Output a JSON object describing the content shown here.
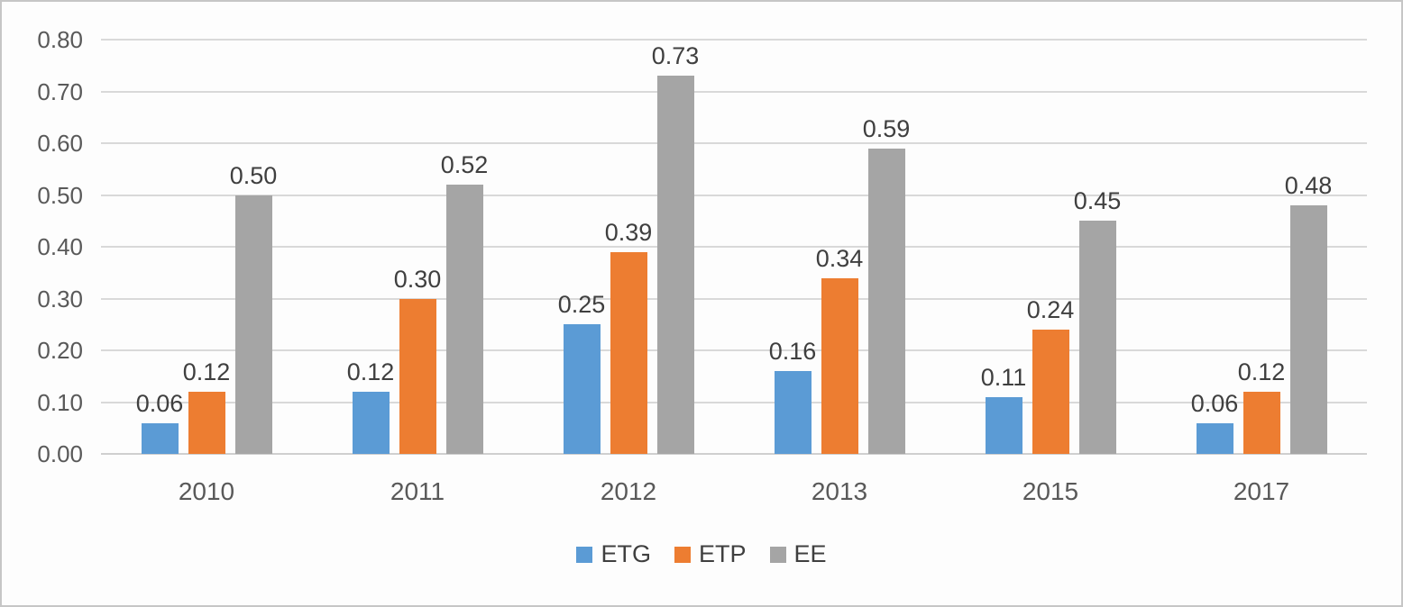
{
  "chart_data": {
    "type": "bar",
    "title": "",
    "xlabel": "",
    "ylabel": "",
    "categories": [
      "2010",
      "2011",
      "2012",
      "2013",
      "2015",
      "2017"
    ],
    "series": [
      {
        "name": "ETG",
        "color": "#5B9BD5",
        "values": [
          0.06,
          0.12,
          0.25,
          0.16,
          0.11,
          0.06
        ]
      },
      {
        "name": "ETP",
        "color": "#ED7D31",
        "values": [
          0.12,
          0.3,
          0.39,
          0.34,
          0.24,
          0.12
        ]
      },
      {
        "name": "EE",
        "color": "#A5A5A5",
        "values": [
          0.5,
          0.52,
          0.73,
          0.59,
          0.45,
          0.48
        ]
      }
    ],
    "ylim": [
      0,
      0.8
    ],
    "ytick_step": 0.1,
    "ytick_labels": [
      "0.00",
      "0.10",
      "0.20",
      "0.30",
      "0.40",
      "0.50",
      "0.60",
      "0.70",
      "0.80"
    ],
    "grid": true,
    "data_labels": true,
    "data_label_decimals": 2,
    "legend_position": "bottom-center"
  },
  "colors": {
    "gridline": "#d9d9d9",
    "axis_line": "#cfcfcf",
    "tick_text": "#595959",
    "label_text": "#3f3f3f",
    "figure_border": "#c6c6c6",
    "background": "#fdfdfd"
  }
}
